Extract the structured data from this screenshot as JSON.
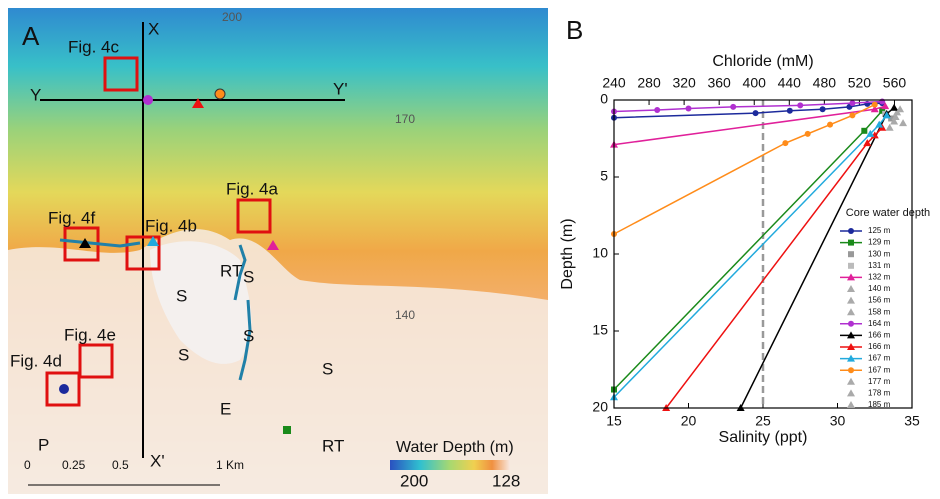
{
  "map": {
    "labels": [
      "A",
      "X",
      "X'",
      "Y",
      "Y'",
      "Fig. 4c",
      "Fig. 4a",
      "Fig. 4f",
      "Fig. 4b",
      "Fig. 4e",
      "Fig. 4d",
      "RT",
      "S",
      "S",
      "S",
      "S",
      "S",
      "E",
      "P",
      "RT",
      "200",
      "170",
      "140",
      "Water Depth (m)",
      "200",
      "128",
      "0",
      "0.25",
      "0.5",
      "1 Km"
    ]
  },
  "chart_data": {
    "type": "line",
    "panel_label": "B",
    "x_label": "Salinity (ppt)",
    "y_label": "Depth (m)",
    "x2_label": "Chloride (mM)",
    "legend_title": "Core water depth",
    "xlim": [
      15,
      35
    ],
    "xticks": [
      15,
      20,
      25,
      30,
      35
    ],
    "ylim": [
      20,
      0
    ],
    "yticks": [
      0,
      5,
      10,
      15,
      20
    ],
    "x2lim": [
      240,
      580
    ],
    "x2ticks": [
      240,
      280,
      320,
      360,
      400,
      440,
      480,
      520,
      560
    ],
    "reference_line": {
      "x": 25,
      "color": "#999999"
    },
    "series": [
      {
        "name": "125 m",
        "color": "#1c2a9c",
        "marker": "circle",
        "x": [
          15,
          24.5,
          26.8,
          29,
          30.8,
          32,
          33
        ],
        "values": [
          1.15,
          0.85,
          0.7,
          0.6,
          0.45,
          0.25,
          0.2
        ]
      },
      {
        "name": "129 m",
        "color": "#1a8a1a",
        "marker": "square",
        "x": [
          15,
          31.8,
          33
        ],
        "values": [
          18.8,
          2,
          0.7
        ]
      },
      {
        "name": "130 m",
        "color": "#999999",
        "marker": "square",
        "x": [
          33.6
        ],
        "values": [
          1.2
        ]
      },
      {
        "name": "131 m",
        "color": "#bbbbbb",
        "marker": "square",
        "x": [
          33.2
        ],
        "values": [
          0.9
        ]
      },
      {
        "name": "132 m",
        "color": "#e0209a",
        "marker": "triangle",
        "x": [
          15,
          32.5,
          33.2
        ],
        "values": [
          2.9,
          0.6,
          0.4
        ]
      },
      {
        "name": "140 m",
        "color": "#aaaaaa",
        "marker": "triangle",
        "x": [
          33.8
        ],
        "values": [
          1.4
        ]
      },
      {
        "name": "156 m",
        "color": "#aaaaaa",
        "marker": "triangle",
        "x": [
          34
        ],
        "values": [
          0.8
        ]
      },
      {
        "name": "158 m",
        "color": "#aaaaaa",
        "marker": "triangle",
        "x": [
          33.5
        ],
        "values": [
          1.8
        ]
      },
      {
        "name": "164 m",
        "color": "#b030d0",
        "marker": "circle",
        "x": [
          15,
          17.9,
          20,
          23,
          27.5,
          31,
          33
        ],
        "values": [
          0.75,
          0.65,
          0.55,
          0.45,
          0.35,
          0.2,
          0.1
        ]
      },
      {
        "name": "166 m",
        "color": "#000000",
        "marker": "triangle",
        "x": [
          23.5,
          33.3,
          33.8
        ],
        "values": [
          20,
          0.9,
          0.5
        ]
      },
      {
        "name": "166 m",
        "color": "#ee1111",
        "marker": "triangle",
        "x": [
          18.5,
          32,
          32.5,
          33
        ],
        "values": [
          20,
          2.8,
          2.3,
          1.8
        ]
      },
      {
        "name": "167 m",
        "color": "#22aadd",
        "marker": "triangle",
        "x": [
          15,
          32.2,
          32.8,
          33.3
        ],
        "values": [
          19.3,
          2.2,
          1.6,
          1
        ]
      },
      {
        "name": "167 m",
        "color": "#ff8c1a",
        "marker": "circle",
        "x": [
          15,
          26.5,
          28,
          29.5,
          31,
          32.5
        ],
        "values": [
          8.7,
          2.8,
          2.2,
          1.6,
          1,
          0.3
        ]
      },
      {
        "name": "177 m",
        "color": "#aaaaaa",
        "marker": "triangle",
        "x": [
          34.2
        ],
        "values": [
          0.6
        ]
      },
      {
        "name": "178 m",
        "color": "#aaaaaa",
        "marker": "triangle",
        "x": [
          33.9
        ],
        "values": [
          1.1
        ]
      },
      {
        "name": "185 m",
        "color": "#aaaaaa",
        "marker": "triangle",
        "x": [
          34.4
        ],
        "values": [
          1.5
        ]
      }
    ]
  }
}
